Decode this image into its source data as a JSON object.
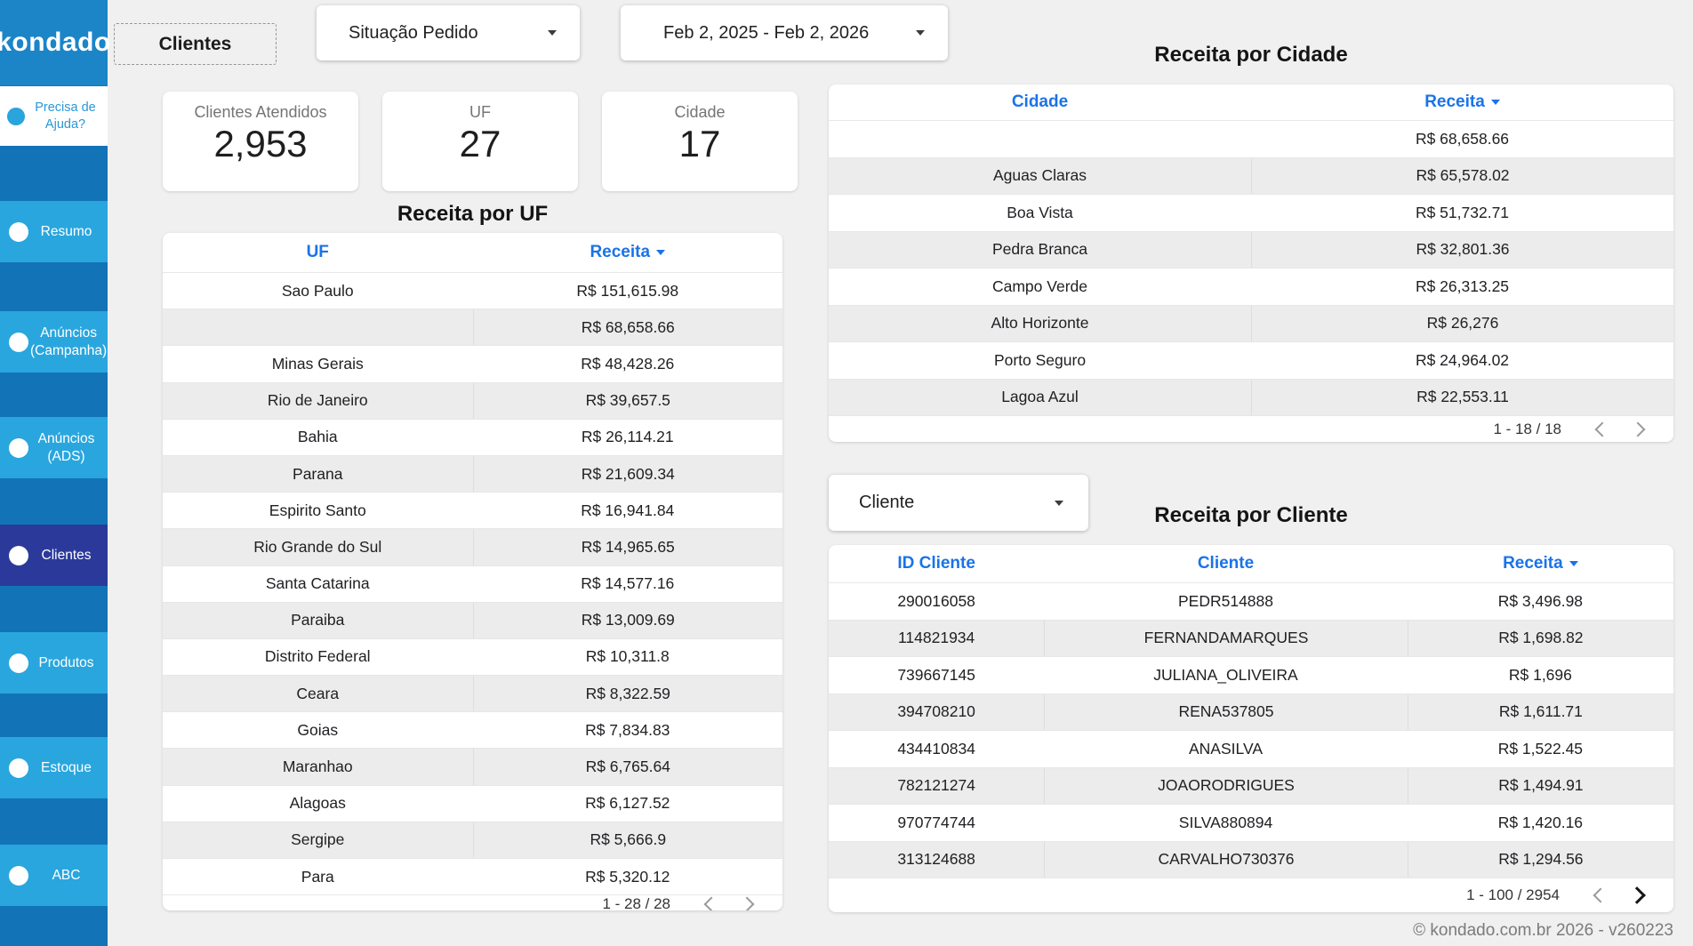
{
  "sidebar": {
    "logo": "kondado",
    "help": {
      "label": "Precisa de Ajuda?"
    },
    "items": [
      {
        "label": "Resumo"
      },
      {
        "label": "Anúncios (Campanha)"
      },
      {
        "label": "Anúncios (ADS)"
      },
      {
        "label": "Clientes",
        "selected": true
      },
      {
        "label": "Produtos"
      },
      {
        "label": "Estoque"
      },
      {
        "label": "ABC"
      }
    ]
  },
  "topbar": {
    "page_button": "Clientes",
    "situacao_filter": "Situação Pedido",
    "date_range": "Feb 2, 2025 - Feb 2, 2026"
  },
  "scorecards": [
    {
      "label": "Clientes Atendidos",
      "value": "2,953"
    },
    {
      "label": "UF",
      "value": "27"
    },
    {
      "label": "Cidade",
      "value": "17"
    }
  ],
  "uf_table": {
    "title": "Receita por UF",
    "col1": "UF",
    "col2": "Receita",
    "rows": [
      {
        "c1": "Sao Paulo",
        "c2": "R$ 151,615.98"
      },
      {
        "c1": "",
        "c2": "R$ 68,658.66"
      },
      {
        "c1": "Minas Gerais",
        "c2": "R$ 48,428.26"
      },
      {
        "c1": "Rio de Janeiro",
        "c2": "R$ 39,657.5"
      },
      {
        "c1": "Bahia",
        "c2": "R$ 26,114.21"
      },
      {
        "c1": "Parana",
        "c2": "R$ 21,609.34"
      },
      {
        "c1": "Espirito Santo",
        "c2": "R$ 16,941.84"
      },
      {
        "c1": "Rio Grande do Sul",
        "c2": "R$ 14,965.65"
      },
      {
        "c1": "Santa Catarina",
        "c2": "R$ 14,577.16"
      },
      {
        "c1": "Paraiba",
        "c2": "R$ 13,009.69"
      },
      {
        "c1": "Distrito Federal",
        "c2": "R$ 10,311.8"
      },
      {
        "c1": "Ceara",
        "c2": "R$ 8,322.59"
      },
      {
        "c1": "Goias",
        "c2": "R$ 7,834.83"
      },
      {
        "c1": "Maranhao",
        "c2": "R$ 6,765.64"
      },
      {
        "c1": "Alagoas",
        "c2": "R$ 6,127.52"
      },
      {
        "c1": "Sergipe",
        "c2": "R$ 5,666.9"
      },
      {
        "c1": "Para",
        "c2": "R$ 5,320.12"
      }
    ],
    "pagination": "1 - 28 / 28"
  },
  "cidade_table": {
    "title": "Receita por Cidade",
    "col1": "Cidade",
    "col2": "Receita",
    "rows": [
      {
        "c1": "",
        "c2": "R$ 68,658.66"
      },
      {
        "c1": "Aguas Claras",
        "c2": "R$ 65,578.02"
      },
      {
        "c1": "Boa Vista",
        "c2": "R$ 51,732.71"
      },
      {
        "c1": "Pedra Branca",
        "c2": "R$ 32,801.36"
      },
      {
        "c1": "Campo Verde",
        "c2": "R$ 26,313.25"
      },
      {
        "c1": "Alto Horizonte",
        "c2": "R$ 26,276"
      },
      {
        "c1": "Porto Seguro",
        "c2": "R$ 24,964.02"
      },
      {
        "c1": "Lagoa Azul",
        "c2": "R$ 22,553.11"
      }
    ],
    "pagination": "1 - 18 / 18"
  },
  "cliente_filter": "Cliente",
  "cliente_table": {
    "title": "Receita por Cliente",
    "col1": "ID Cliente",
    "col2": "Cliente",
    "col3": "Receita",
    "rows": [
      {
        "c1": "290016058",
        "c2": "PEDR514888",
        "c3": "R$ 3,496.98"
      },
      {
        "c1": "114821934",
        "c2": "FERNANDAMARQUES",
        "c3": "R$ 1,698.82"
      },
      {
        "c1": "739667145",
        "c2": "JULIANA_OLIVEIRA",
        "c3": "R$ 1,696"
      },
      {
        "c1": "394708210",
        "c2": "RENA537805",
        "c3": "R$ 1,611.71"
      },
      {
        "c1": "434410834",
        "c2": "ANASILVA",
        "c3": "R$ 1,522.45"
      },
      {
        "c1": "782121274",
        "c2": "JOAORODRIGUES",
        "c3": "R$ 1,494.91"
      },
      {
        "c1": "970774744",
        "c2": "SILVA880894",
        "c3": "R$ 1,420.16"
      },
      {
        "c1": "313124688",
        "c2": "CARVALHO730376",
        "c3": "R$ 1,294.56"
      }
    ],
    "pagination": "1 - 100 / 2954"
  },
  "footer": "© kondado.com.br 2026 - v260223",
  "colors": {
    "sidebar_bg": "#1373b7",
    "sidebar_logo_bg": "#1b85c8",
    "sidebar_item_bg": "#29a6de",
    "sidebar_selected_bg": "#2b3a9a",
    "header_blue": "#1a73e8",
    "row_alt": "#ececec",
    "page_bg": "#f0f0f0"
  }
}
